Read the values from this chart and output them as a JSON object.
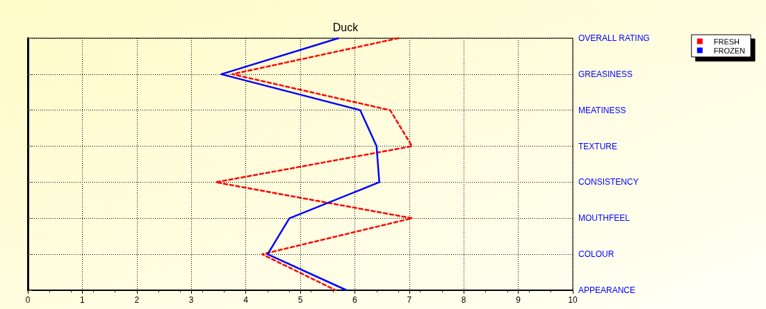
{
  "chart_data": {
    "type": "line",
    "orientation": "horizontal",
    "title": "Duck",
    "categories": [
      "OVERALL RATING",
      "GREASINESS",
      "MEATINESS",
      "TEXTURE",
      "CONSISTENCY",
      "MOUTHFEEL",
      "COLOUR",
      "APPEARANCE"
    ],
    "series": [
      {
        "name": "FRESH",
        "color": "#ff0000",
        "line_style": "dashed",
        "values": [
          6.8,
          3.75,
          6.65,
          7.05,
          3.45,
          7.05,
          4.3,
          5.65
        ]
      },
      {
        "name": "FROZEN",
        "color": "#0000ff",
        "line_style": "solid",
        "values": [
          5.7,
          3.55,
          6.1,
          6.4,
          6.45,
          4.8,
          4.4,
          5.85
        ]
      }
    ],
    "xlim": [
      0,
      10
    ],
    "xticks": [
      0,
      1,
      2,
      3,
      4,
      5,
      6,
      7,
      8,
      9,
      10
    ],
    "grid": true,
    "legend": "top right",
    "marker": "none"
  }
}
